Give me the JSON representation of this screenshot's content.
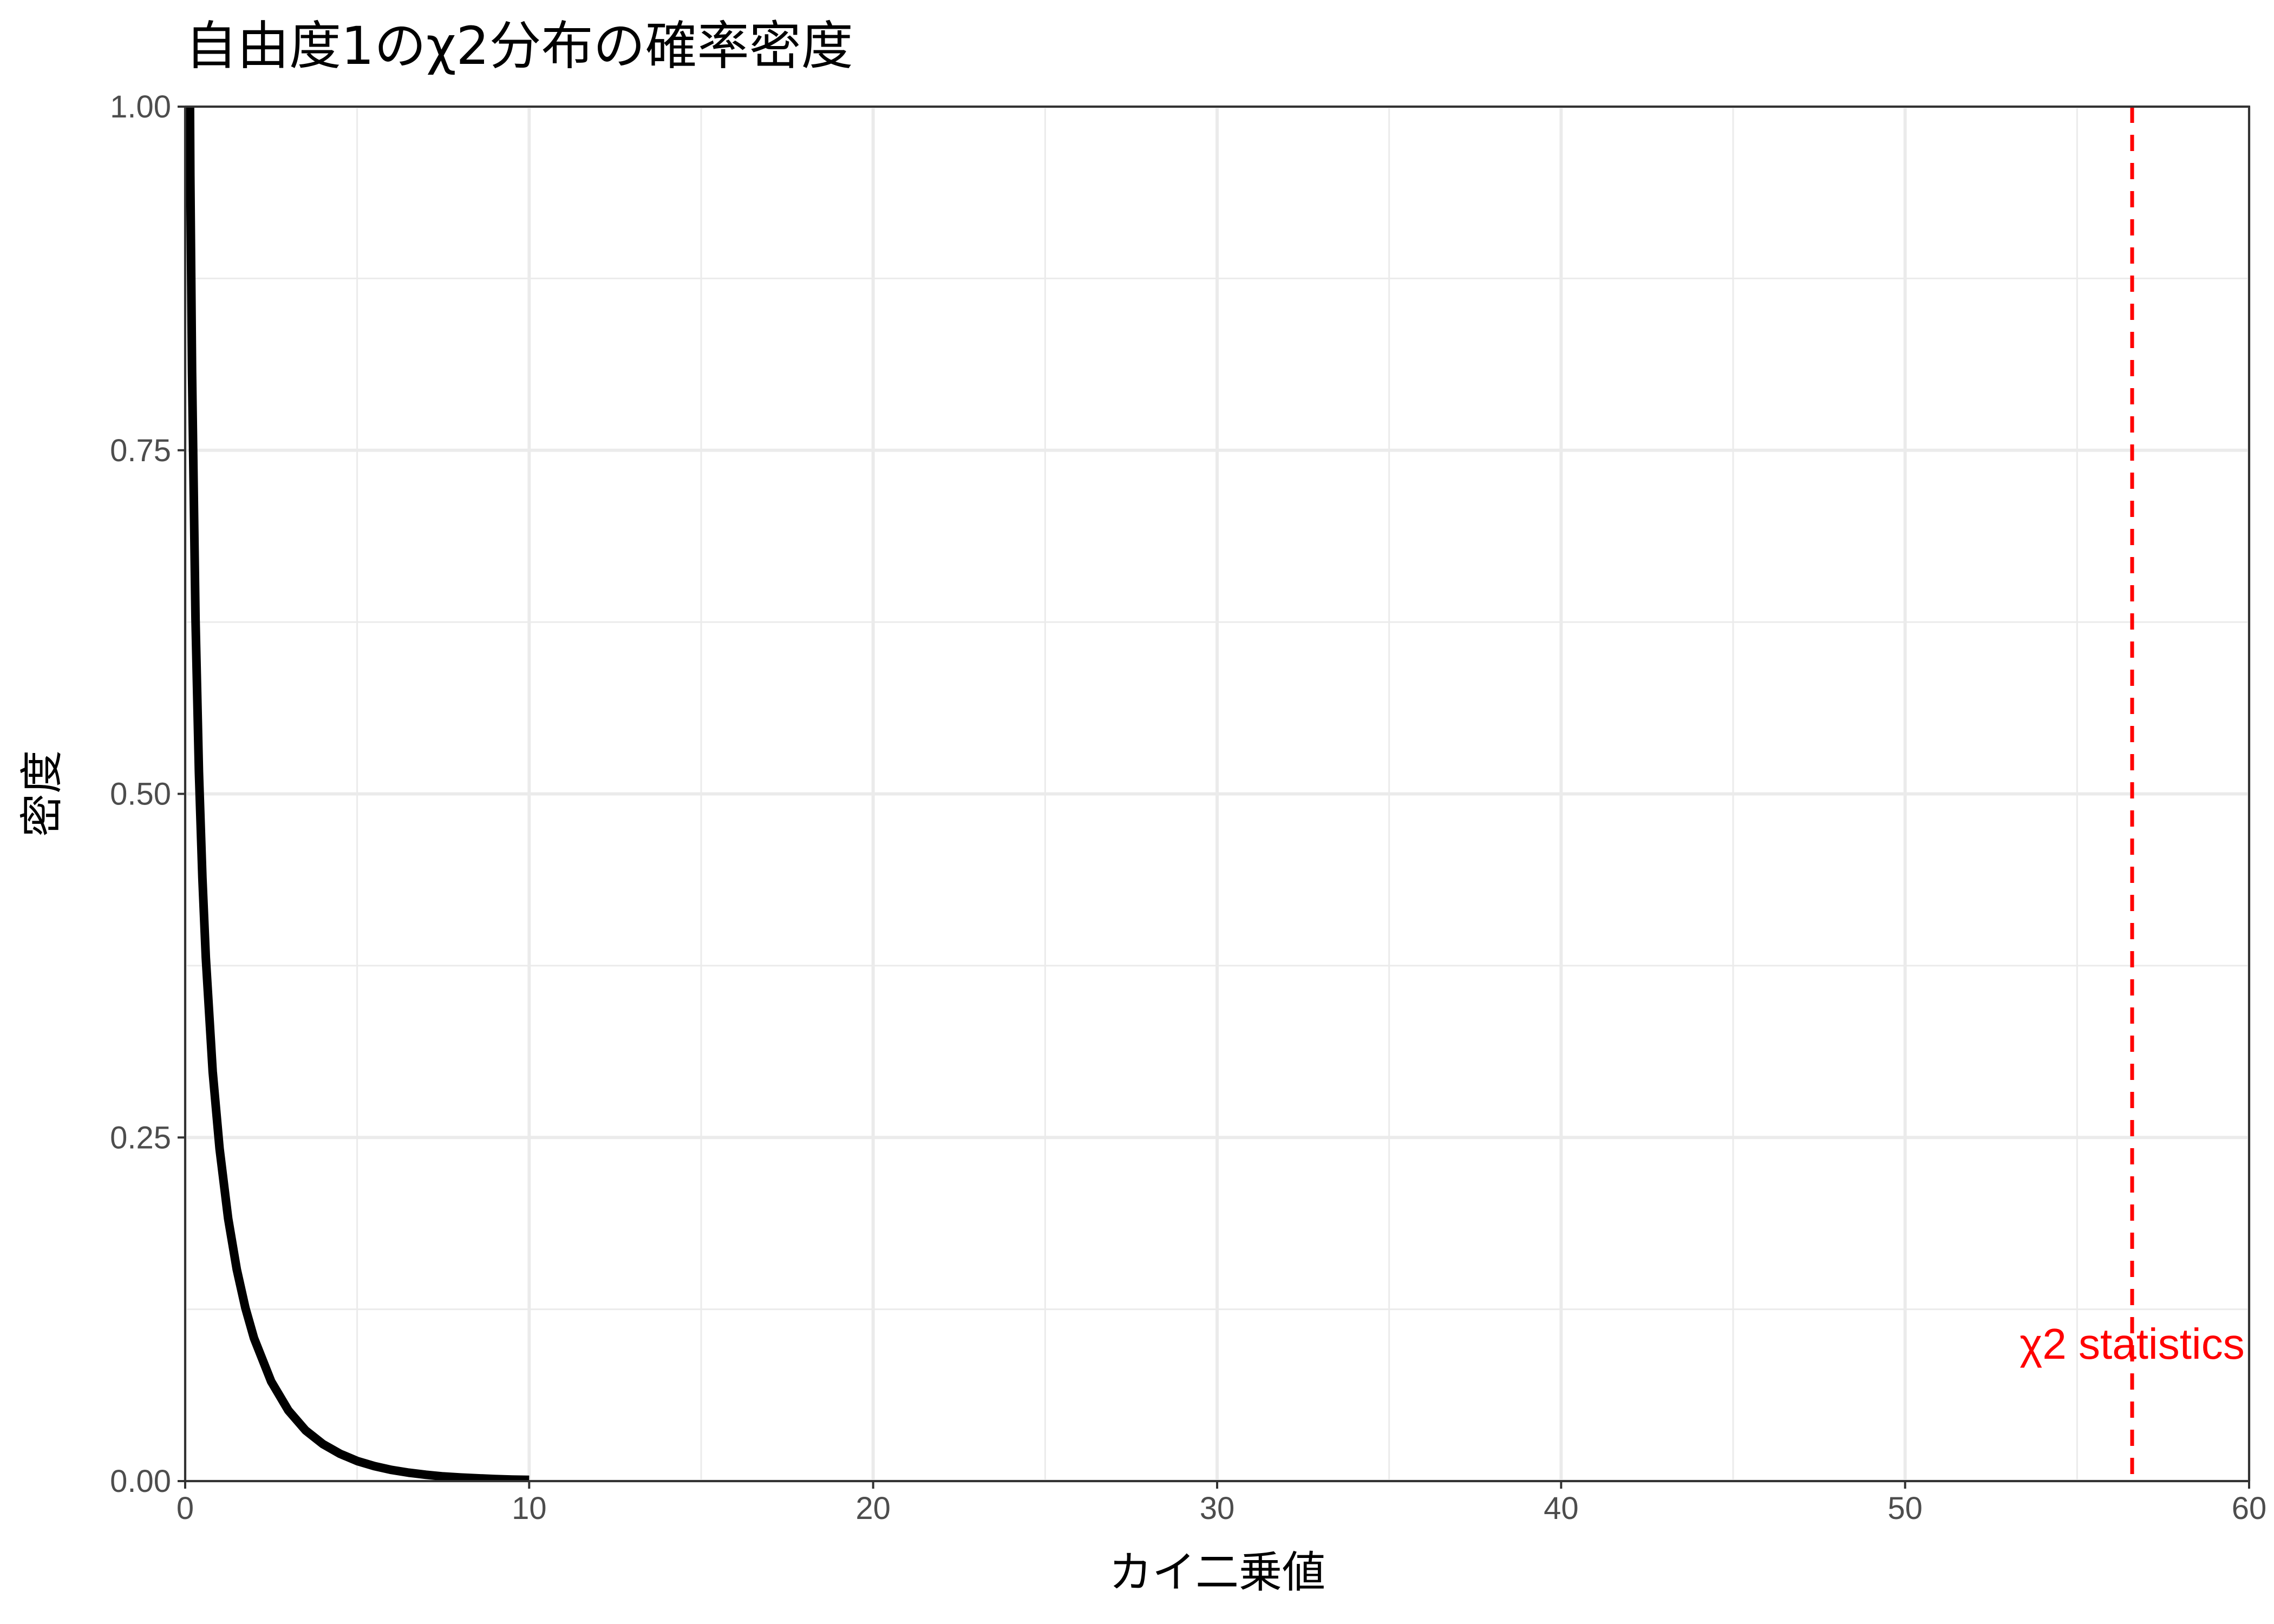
{
  "chart_data": {
    "type": "line",
    "title": "自由度1のχ2分布の確率密度",
    "xlabel": "カイ二乗値",
    "ylabel": "密度",
    "xlim": [
      0,
      60
    ],
    "ylim": [
      0,
      1
    ],
    "x_ticks": [
      0,
      10,
      20,
      30,
      40,
      50,
      60
    ],
    "x_tick_labels": [
      "0",
      "10",
      "20",
      "30",
      "40",
      "50",
      "60"
    ],
    "x_minor_ticks": [
      5,
      15,
      25,
      35,
      45,
      55
    ],
    "y_ticks": [
      0,
      0.25,
      0.5,
      0.75,
      1
    ],
    "y_tick_labels": [
      "0.00",
      "0.25",
      "0.50",
      "0.75",
      "1.00"
    ],
    "y_minor_ticks": [
      0.125,
      0.375,
      0.625,
      0.875
    ],
    "grid": true,
    "series": [
      {
        "x": [
          0.1,
          0.15,
          0.2,
          0.3,
          0.4,
          0.5,
          0.6,
          0.8,
          1.0,
          1.25,
          1.5,
          1.75,
          2.0,
          2.5,
          3.0,
          3.5,
          4.0,
          4.5,
          5.0,
          5.5,
          6.0,
          6.5,
          7.0,
          7.5,
          8.0,
          8.5,
          9.0,
          9.5,
          10.0
        ],
        "values": [
          1.2,
          0.95,
          0.807,
          0.627,
          0.516,
          0.439,
          0.381,
          0.298,
          0.242,
          0.191,
          0.154,
          0.126,
          0.104,
          0.0725,
          0.0514,
          0.0369,
          0.027,
          0.0199,
          0.0146,
          0.0109,
          0.0081,
          0.0061,
          0.0046,
          0.0034,
          0.0026,
          0.002,
          0.0015,
          0.0011,
          0.0009
        ],
        "color": "#000000"
      }
    ],
    "annotations": [
      {
        "type": "vline",
        "x": 56.6,
        "style": "dashed",
        "color": "#ff0000"
      },
      {
        "type": "text",
        "text": "χ2 statistics",
        "x": 56.6,
        "y": 0.1,
        "color": "#ff0000"
      }
    ]
  }
}
